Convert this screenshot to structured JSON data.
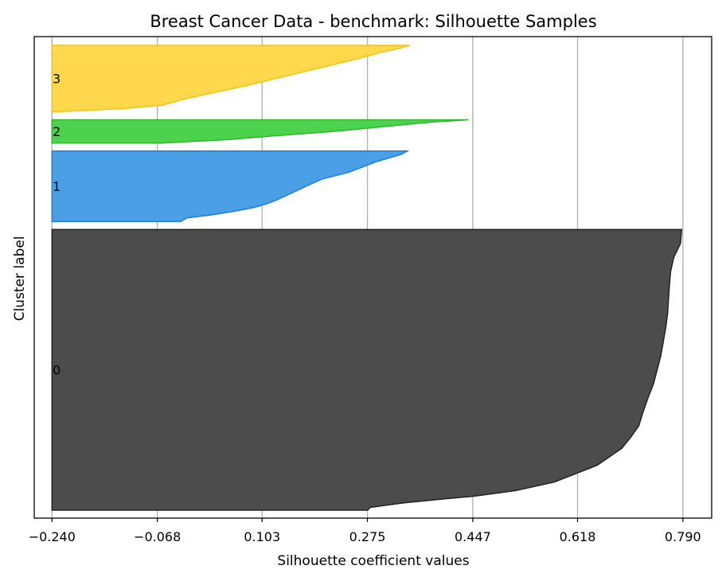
{
  "chart_data": {
    "type": "area",
    "title": "Breast Cancer Data - benchmark: Silhouette Samples",
    "xlabel": "Silhouette coefficient values",
    "ylabel": "Cluster label",
    "xlim": [
      -0.269,
      0.837
    ],
    "xticks": [
      -0.24,
      -0.068,
      0.103,
      0.275,
      0.447,
      0.618,
      0.79
    ],
    "xtick_labels": [
      "−0.240",
      "−0.068",
      "0.103",
      "0.275",
      "0.447",
      "0.618",
      "0.790"
    ],
    "grid": "vertical",
    "baseline": -0.24,
    "clusters": [
      {
        "label": "0",
        "color": "#4c4c4c",
        "edge": "#222222",
        "size": 338,
        "profile": [
          [
            0,
            0.788
          ],
          [
            0.05,
            0.786
          ],
          [
            0.1,
            0.775
          ],
          [
            0.15,
            0.77
          ],
          [
            0.2,
            0.768
          ],
          [
            0.3,
            0.765
          ],
          [
            0.35,
            0.762
          ],
          [
            0.4,
            0.758
          ],
          [
            0.45,
            0.754
          ],
          [
            0.5,
            0.748
          ],
          [
            0.55,
            0.742
          ],
          [
            0.6,
            0.733
          ],
          [
            0.65,
            0.725
          ],
          [
            0.7,
            0.718
          ],
          [
            0.74,
            0.705
          ],
          [
            0.78,
            0.69
          ],
          [
            0.81,
            0.67
          ],
          [
            0.84,
            0.65
          ],
          [
            0.87,
            0.615
          ],
          [
            0.9,
            0.58
          ],
          [
            0.93,
            0.518
          ],
          [
            0.95,
            0.45
          ],
          [
            0.96,
            0.4
          ],
          [
            0.975,
            0.33
          ],
          [
            0.99,
            0.28
          ],
          [
            1.0,
            0.275
          ]
        ]
      },
      {
        "label": "1",
        "color": "#4a9fe5",
        "edge": "#1e7fd6",
        "size": 85,
        "profile": [
          [
            0,
            0.34
          ],
          [
            0.05,
            0.33
          ],
          [
            0.1,
            0.31
          ],
          [
            0.15,
            0.29
          ],
          [
            0.2,
            0.275
          ],
          [
            0.3,
            0.245
          ],
          [
            0.4,
            0.2
          ],
          [
            0.5,
            0.175
          ],
          [
            0.6,
            0.15
          ],
          [
            0.7,
            0.125
          ],
          [
            0.75,
            0.11
          ],
          [
            0.8,
            0.09
          ],
          [
            0.85,
            0.06
          ],
          [
            0.9,
            0.025
          ],
          [
            0.95,
            -0.02
          ],
          [
            1.0,
            -0.03
          ]
        ]
      },
      {
        "label": "2",
        "color": "#4cd24c",
        "edge": "#2fb82f",
        "size": 28,
        "profile": [
          [
            0,
            0.44
          ],
          [
            0.1,
            0.38
          ],
          [
            0.2,
            0.34
          ],
          [
            0.3,
            0.3
          ],
          [
            0.5,
            0.22
          ],
          [
            0.7,
            0.12
          ],
          [
            0.85,
            0.05
          ],
          [
            1.0,
            -0.06
          ]
        ]
      },
      {
        "label": "3",
        "color": "#ffd84c",
        "edge": "#f2c21a",
        "size": 80,
        "profile": [
          [
            0,
            0.344
          ],
          [
            0.05,
            0.325
          ],
          [
            0.1,
            0.3
          ],
          [
            0.2,
            0.26
          ],
          [
            0.3,
            0.215
          ],
          [
            0.4,
            0.17
          ],
          [
            0.5,
            0.125
          ],
          [
            0.6,
            0.08
          ],
          [
            0.7,
            0.03
          ],
          [
            0.8,
            -0.02
          ],
          [
            0.9,
            -0.06
          ],
          [
            0.95,
            -0.12
          ],
          [
            1.0,
            -0.235
          ]
        ]
      }
    ]
  }
}
